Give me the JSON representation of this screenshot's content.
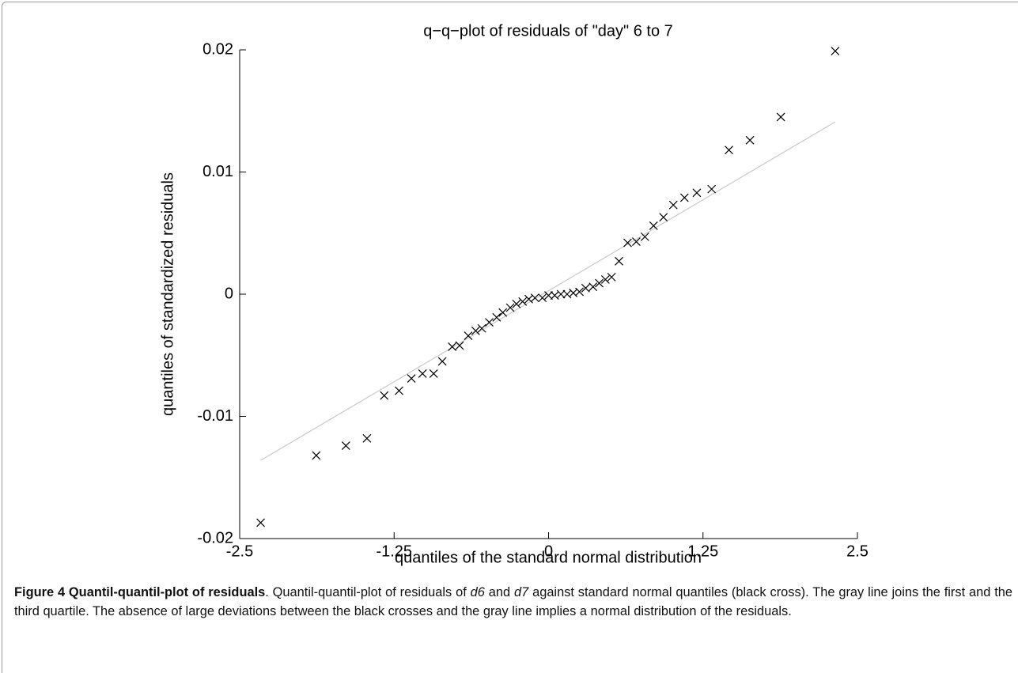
{
  "chart_data": {
    "type": "scatter",
    "title": "q−q−plot of residuals of \"day\" 6 to 7",
    "x_label": "quantiles of the standard normal distribution",
    "y_label": "quantiles of standardized residuals",
    "series": [
      {
        "name": "black cross",
        "color": "#000000",
        "x": [
          -2.33,
          -1.88,
          -1.64,
          -1.47,
          -1.33,
          -1.21,
          -1.11,
          -1.02,
          -0.93,
          -0.86,
          -0.78,
          -0.72,
          -0.65,
          -0.59,
          -0.54,
          -0.48,
          -0.42,
          -0.37,
          -0.31,
          -0.26,
          -0.21,
          -0.16,
          -0.11,
          -0.05,
          0,
          0.05,
          0.1,
          0.15,
          0.2,
          0.25,
          0.3,
          0.36,
          0.41,
          0.46,
          0.51,
          0.57,
          0.64,
          0.71,
          0.78,
          0.85,
          0.93,
          1.01,
          1.1,
          1.2,
          1.32,
          1.46,
          1.63,
          1.88,
          2.32
        ],
        "values": [
          -0.0187,
          -0.0132,
          -0.0124,
          -0.0118,
          -0.0083,
          -0.0079,
          -0.0069,
          -0.0065,
          -0.0065,
          -0.0055,
          -0.0043,
          -0.0042,
          -0.0034,
          -0.003,
          -0.0028,
          -0.0023,
          -0.0019,
          -0.0015,
          -0.0011,
          -0.0008,
          -0.0006,
          -0.0004,
          -0.0003,
          -0.0003,
          -0.0001,
          -0.0001,
          0,
          0,
          0.0001,
          0.0002,
          0.0005,
          0.0006,
          0.0009,
          0.0012,
          0.0014,
          0.0027,
          0.0042,
          0.0043,
          0.0047,
          0.0056,
          0.0063,
          0.0073,
          0.0079,
          0.0083,
          0.0086,
          0.0118,
          0.0126,
          0.0145,
          0.0199
        ]
      }
    ],
    "reference_line": {
      "color": "#c8c8c8",
      "x": [
        -2.33,
        2.32
      ],
      "values": [
        -0.0136,
        0.0141
      ]
    },
    "xlim": [
      -2.5,
      2.5
    ],
    "xticks": [
      -2.5,
      -1.25,
      0,
      1.25,
      2.5
    ],
    "ylim": [
      -0.02,
      0.02
    ],
    "yticks": [
      -0.02,
      -0.01,
      0,
      0.01,
      0.02
    ]
  },
  "caption": {
    "label": "Figure 4 Quantil-quantil-plot of residuals",
    "text": [
      ". Quantil-quantil-plot of residuals of ",
      "d6",
      " and ",
      "d7",
      " against standard normal quantiles (black cross). The gray line joins the first and the third quartile. The absence of large deviations between the black crosses and the gray line implies a normal distribution of the residuals."
    ]
  }
}
